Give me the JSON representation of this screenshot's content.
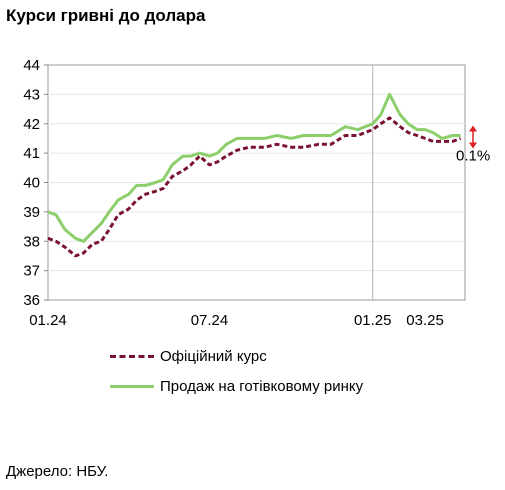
{
  "chart_data": {
    "type": "line",
    "title": "Курси гривні до долара",
    "ylim": [
      36,
      44
    ],
    "yticks": [
      36,
      37,
      38,
      39,
      40,
      41,
      42,
      43,
      44
    ],
    "xlim": [
      "2024-01-01",
      "2025-04-15"
    ],
    "xticks": [
      {
        "label": "01.24",
        "date": "2024-01-01"
      },
      {
        "label": "07.24",
        "date": "2024-07-01"
      },
      {
        "label": "01.25",
        "date": "2025-01-01"
      },
      {
        "label": "03.25",
        "date": "2025-03-01"
      }
    ],
    "vline": "2025-01-01",
    "annotation": {
      "text": "0.1%",
      "color": "#e02020"
    },
    "series": [
      {
        "name": "Офіційний курс",
        "color": "#7a1230",
        "style": "dashed",
        "x": [
          "2024-01-01",
          "2024-01-10",
          "2024-01-20",
          "2024-02-01",
          "2024-02-10",
          "2024-02-20",
          "2024-03-01",
          "2024-03-10",
          "2024-03-20",
          "2024-04-01",
          "2024-04-10",
          "2024-04-20",
          "2024-05-01",
          "2024-05-10",
          "2024-05-20",
          "2024-06-01",
          "2024-06-10",
          "2024-06-20",
          "2024-07-01",
          "2024-07-10",
          "2024-07-20",
          "2024-08-01",
          "2024-08-15",
          "2024-09-01",
          "2024-09-15",
          "2024-10-01",
          "2024-10-15",
          "2024-11-01",
          "2024-11-15",
          "2024-12-01",
          "2024-12-15",
          "2025-01-01",
          "2025-01-10",
          "2025-01-20",
          "2025-02-01",
          "2025-02-10",
          "2025-02-20",
          "2025-03-01",
          "2025-03-10",
          "2025-03-20",
          "2025-04-01",
          "2025-04-10"
        ],
        "values": [
          38.1,
          38.0,
          37.8,
          37.5,
          37.6,
          37.9,
          38.0,
          38.4,
          38.9,
          39.1,
          39.4,
          39.6,
          39.7,
          39.8,
          40.2,
          40.4,
          40.6,
          40.9,
          40.6,
          40.7,
          40.9,
          41.1,
          41.2,
          41.2,
          41.3,
          41.2,
          41.2,
          41.3,
          41.3,
          41.6,
          41.6,
          41.8,
          42.0,
          42.2,
          41.9,
          41.7,
          41.6,
          41.5,
          41.4,
          41.4,
          41.4,
          41.5
        ]
      },
      {
        "name": "Продаж на готівковому ринку",
        "color": "#8ccf6a",
        "style": "solid",
        "x": [
          "2024-01-01",
          "2024-01-10",
          "2024-01-20",
          "2024-02-01",
          "2024-02-10",
          "2024-02-20",
          "2024-03-01",
          "2024-03-10",
          "2024-03-20",
          "2024-04-01",
          "2024-04-10",
          "2024-04-20",
          "2024-05-01",
          "2024-05-10",
          "2024-05-20",
          "2024-06-01",
          "2024-06-10",
          "2024-06-20",
          "2024-07-01",
          "2024-07-10",
          "2024-07-20",
          "2024-08-01",
          "2024-08-15",
          "2024-09-01",
          "2024-09-15",
          "2024-10-01",
          "2024-10-15",
          "2024-11-01",
          "2024-11-15",
          "2024-12-01",
          "2024-12-15",
          "2025-01-01",
          "2025-01-10",
          "2025-01-20",
          "2025-02-01",
          "2025-02-10",
          "2025-02-20",
          "2025-03-01",
          "2025-03-10",
          "2025-03-20",
          "2025-04-01",
          "2025-04-10"
        ],
        "values": [
          39.0,
          38.9,
          38.4,
          38.1,
          38.0,
          38.3,
          38.6,
          39.0,
          39.4,
          39.6,
          39.9,
          39.9,
          40.0,
          40.1,
          40.6,
          40.9,
          40.9,
          41.0,
          40.9,
          41.0,
          41.3,
          41.5,
          41.5,
          41.5,
          41.6,
          41.5,
          41.6,
          41.6,
          41.6,
          41.9,
          41.8,
          42.0,
          42.3,
          43.0,
          42.3,
          42.0,
          41.8,
          41.8,
          41.7,
          41.5,
          41.6,
          41.6
        ]
      }
    ]
  },
  "source": "Джерело: НБУ."
}
